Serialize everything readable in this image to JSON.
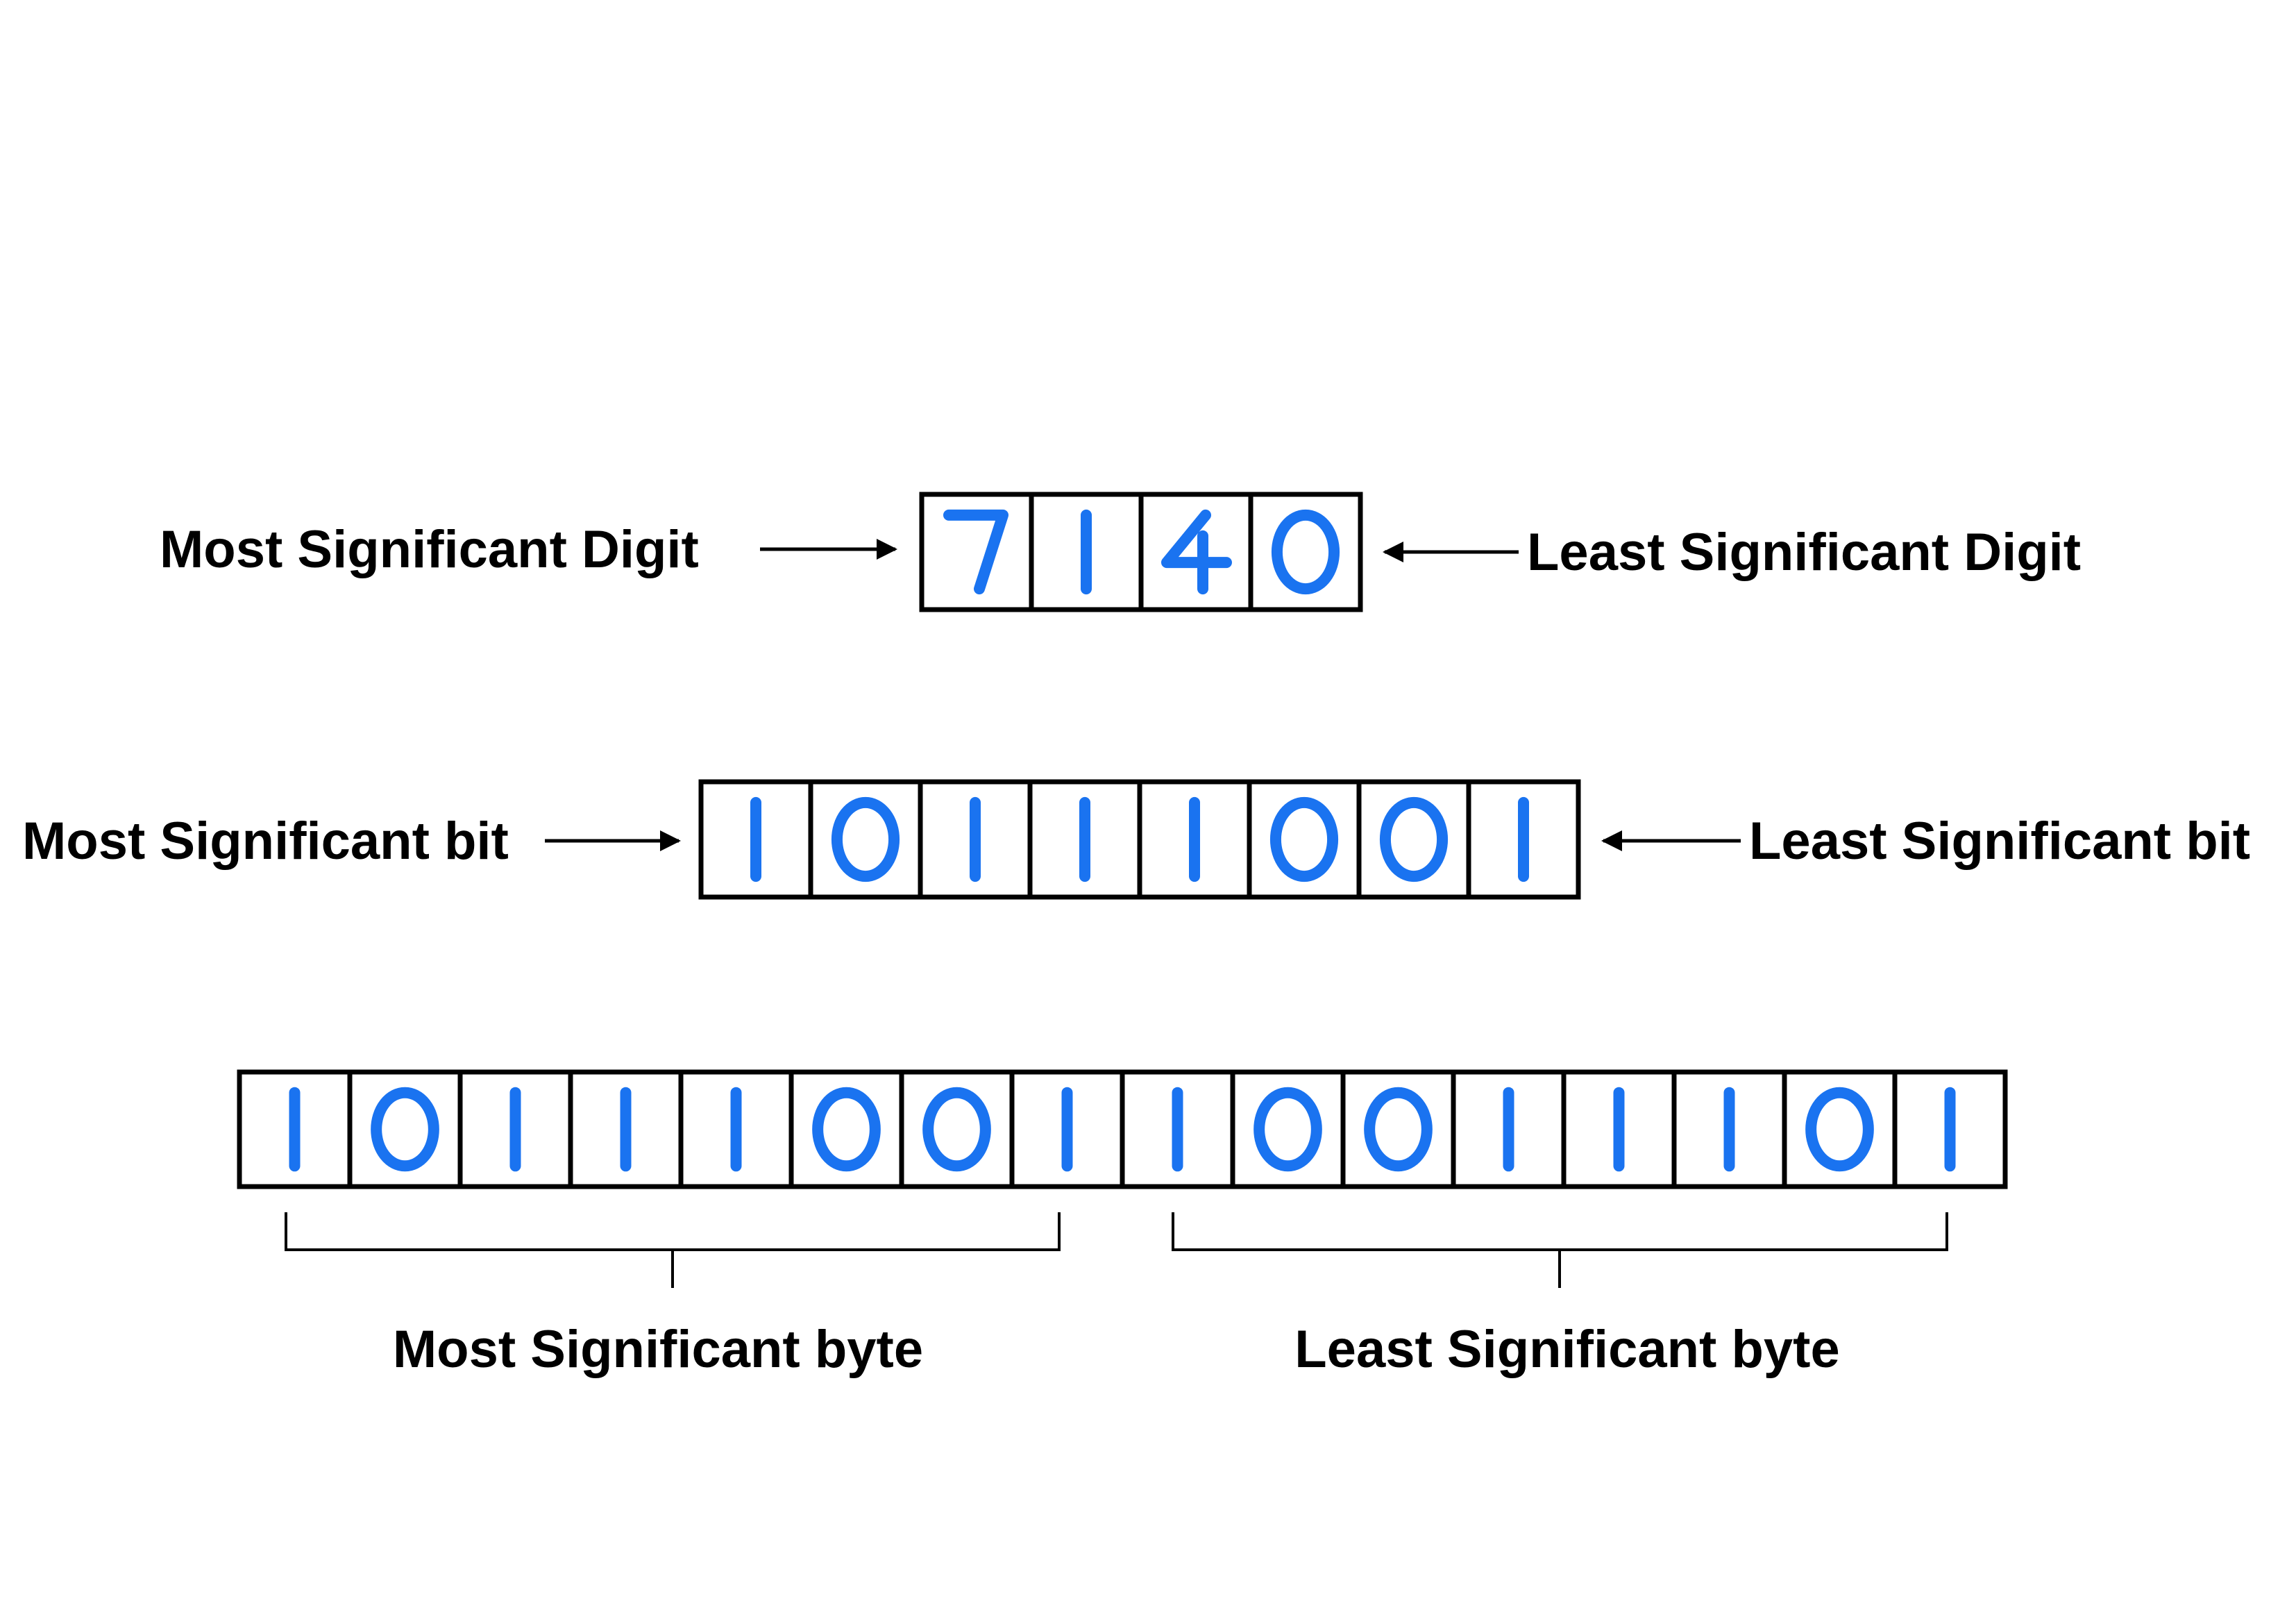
{
  "rows": {
    "digits": {
      "left_label": "Most Significant Digit",
      "right_label": "Least Significant Digit",
      "cells": [
        "7",
        "1",
        "4",
        "0"
      ]
    },
    "bits": {
      "left_label": "Most Significant bit",
      "right_label": "Least Significant bit",
      "cells": [
        "1",
        "0",
        "1",
        "1",
        "1",
        "0",
        "0",
        "1"
      ]
    },
    "bytes": {
      "cells": [
        "1",
        "0",
        "1",
        "1",
        "1",
        "0",
        "0",
        "1",
        "1",
        "0",
        "0",
        "1",
        "1",
        "1",
        "0",
        "1"
      ],
      "left_label": "Most Significant byte",
      "right_label": "Least Significant byte"
    }
  },
  "colors": {
    "digit": "#1a73f0",
    "line": "#000000"
  }
}
